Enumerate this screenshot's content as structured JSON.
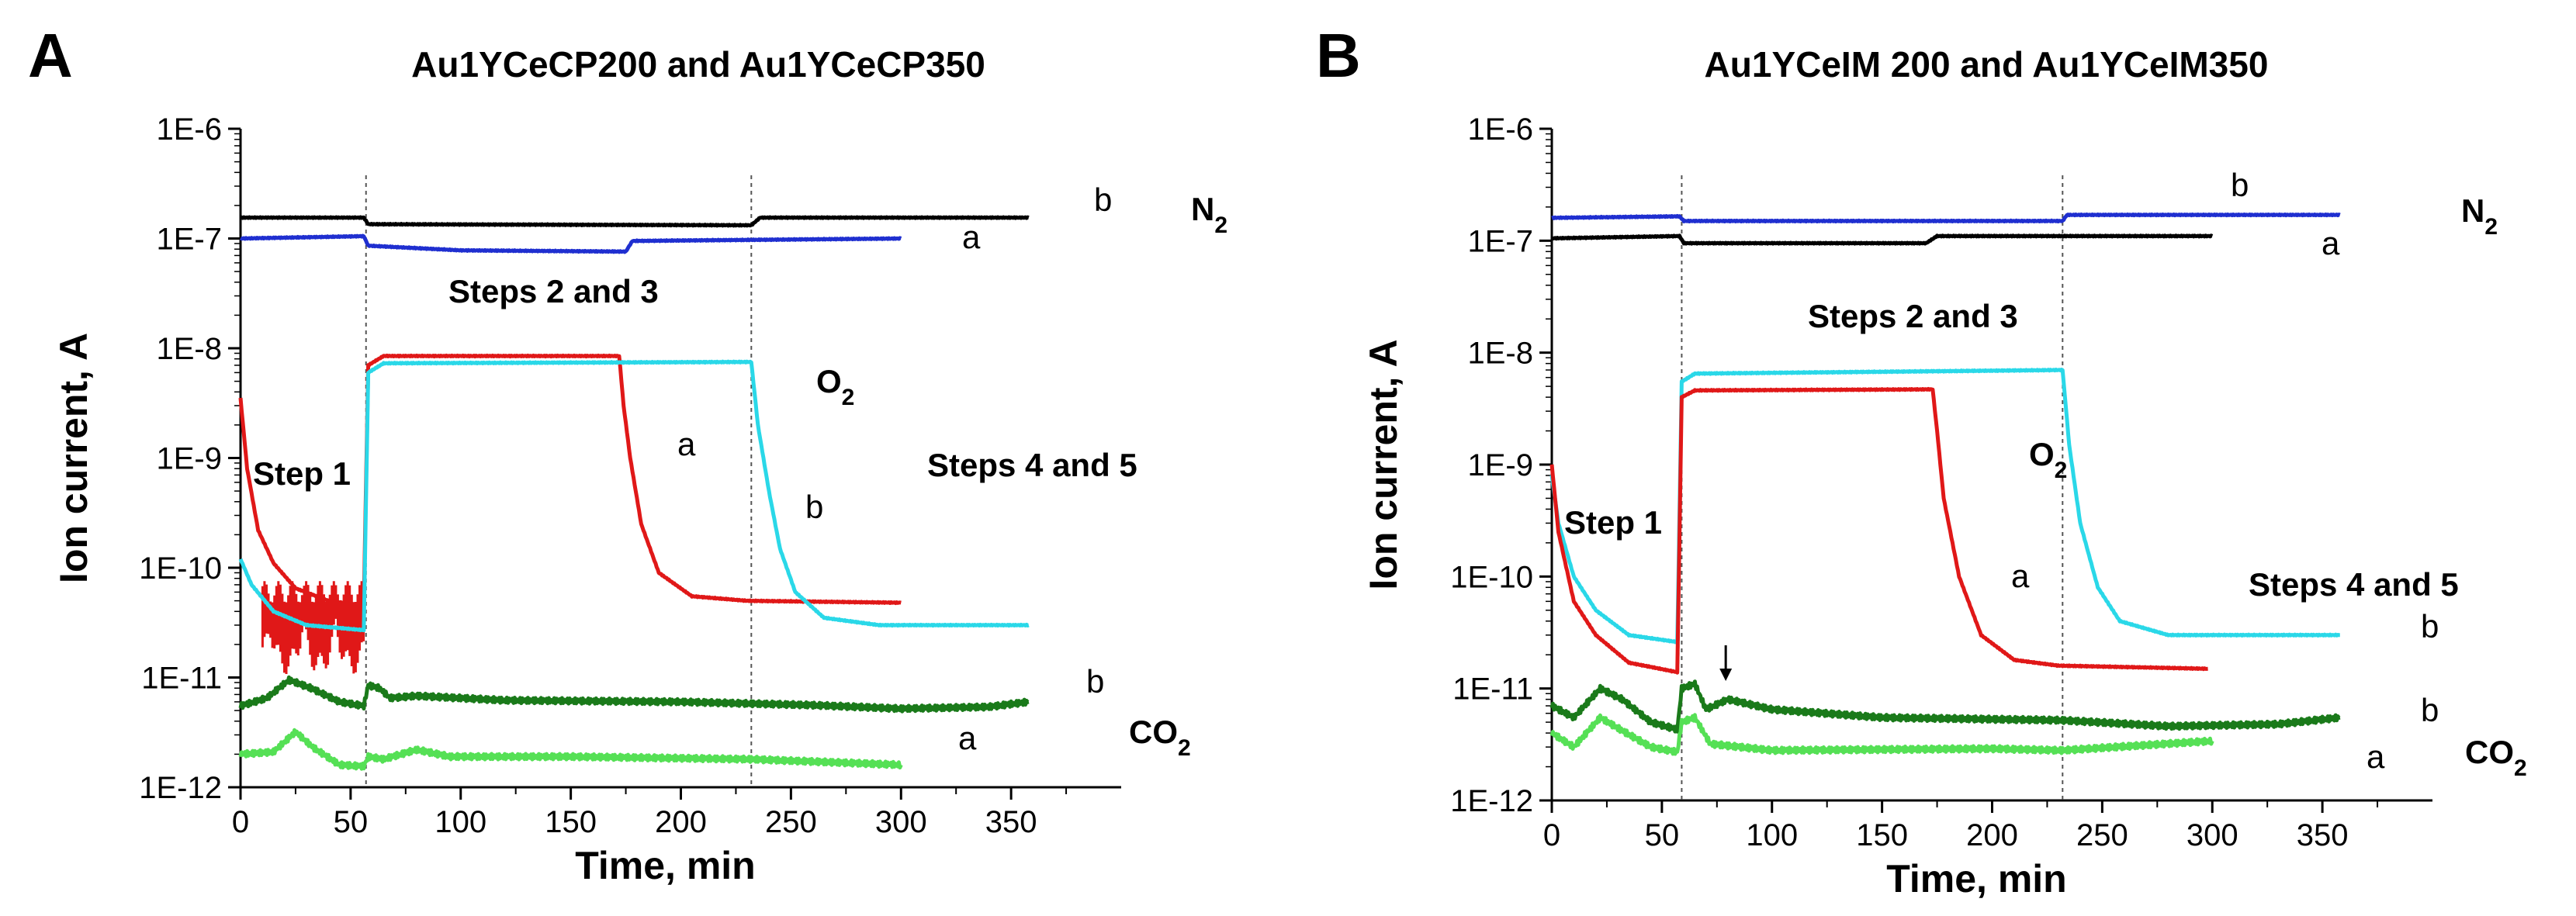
{
  "chart_data": [
    {
      "panel": "A",
      "type": "line",
      "title": "Au1YCeCP200 and Au1YCeCP350",
      "xlabel": "Time, min",
      "ylabel": "Ion current, A",
      "xlim": [
        0,
        400
      ],
      "ylim": [
        1e-12,
        1e-06
      ],
      "yscale": "log",
      "xticks": [
        0,
        50,
        100,
        150,
        200,
        250,
        300,
        350
      ],
      "yticks": [
        1e-12,
        1e-11,
        1e-10,
        1e-09,
        1e-08,
        1e-07,
        1e-06
      ],
      "ytick_labels": [
        "1E-12",
        "1E-11",
        "1E-10",
        "1E-9",
        "1E-8",
        "1E-7",
        "1E-6"
      ],
      "dashed_lines_x": [
        57,
        232
      ],
      "series": [
        {
          "gas": "N2",
          "label": "b",
          "color": "#000000",
          "points": [
            [
              0,
              1.55e-07
            ],
            [
              56,
              1.55e-07
            ],
            [
              58,
              1.35e-07
            ],
            [
              232,
              1.32e-07
            ],
            [
              236,
              1.55e-07
            ],
            [
              358,
              1.55e-07
            ]
          ]
        },
        {
          "gas": "N2",
          "label": "a",
          "color": "#1f2fd0",
          "points": [
            [
              0,
              1e-07
            ],
            [
              56,
              1.05e-07
            ],
            [
              58,
              8.6e-08
            ],
            [
              100,
              7.8e-08
            ],
            [
              175,
              7.6e-08
            ],
            [
              178,
              9.5e-08
            ],
            [
              300,
              1e-07
            ]
          ]
        },
        {
          "gas": "O2",
          "label": "a",
          "color": "#e01818",
          "noisy_range": [
            10,
            56
          ],
          "points": [
            [
              0,
              3.5e-09
            ],
            [
              3,
              8e-10
            ],
            [
              8,
              2.2e-10
            ],
            [
              15,
              1.1e-10
            ],
            [
              25,
              6.5e-11
            ],
            [
              40,
              5e-11
            ],
            [
              56,
              4.5e-11
            ],
            [
              58,
              7e-09
            ],
            [
              65,
              8.5e-09
            ],
            [
              172,
              8.5e-09
            ],
            [
              174,
              3e-09
            ],
            [
              177,
              1e-09
            ],
            [
              182,
              2.5e-10
            ],
            [
              190,
              9e-11
            ],
            [
              205,
              5.5e-11
            ],
            [
              230,
              5e-11
            ],
            [
              300,
              4.8e-11
            ]
          ]
        },
        {
          "gas": "O2",
          "label": "b",
          "color": "#2ad8e8",
          "points": [
            [
              0,
              1.2e-10
            ],
            [
              5,
              7e-11
            ],
            [
              15,
              4e-11
            ],
            [
              30,
              3e-11
            ],
            [
              56,
              2.7e-11
            ],
            [
              58,
              6e-09
            ],
            [
              65,
              7.3e-09
            ],
            [
              232,
              7.5e-09
            ],
            [
              235,
              2e-09
            ],
            [
              240,
              5e-10
            ],
            [
              245,
              1.5e-10
            ],
            [
              252,
              6e-11
            ],
            [
              265,
              3.5e-11
            ],
            [
              290,
              3e-11
            ],
            [
              358,
              3e-11
            ]
          ]
        },
        {
          "gas": "CO2",
          "label": "b",
          "color": "#1a7a1a",
          "points": [
            [
              0,
              5.5e-12
            ],
            [
              12,
              6.5e-12
            ],
            [
              22,
              9.5e-12
            ],
            [
              32,
              8e-12
            ],
            [
              45,
              6e-12
            ],
            [
              56,
              5.5e-12
            ],
            [
              58,
              8.5e-12
            ],
            [
              63,
              8e-12
            ],
            [
              68,
              6.5e-12
            ],
            [
              80,
              6.8e-12
            ],
            [
              120,
              6.2e-12
            ],
            [
              200,
              6e-12
            ],
            [
              260,
              5.6e-12
            ],
            [
              300,
              5.2e-12
            ],
            [
              340,
              5.4e-12
            ],
            [
              358,
              6e-12
            ]
          ]
        },
        {
          "gas": "CO2",
          "label": "a",
          "color": "#55e055",
          "points": [
            [
              0,
              2e-12
            ],
            [
              15,
              2.1e-12
            ],
            [
              25,
              3.2e-12
            ],
            [
              33,
              2.3e-12
            ],
            [
              45,
              1.6e-12
            ],
            [
              56,
              1.55e-12
            ],
            [
              58,
              1.9e-12
            ],
            [
              65,
              1.8e-12
            ],
            [
              80,
              2.2e-12
            ],
            [
              95,
              1.9e-12
            ],
            [
              150,
              1.9e-12
            ],
            [
              232,
              1.8e-12
            ],
            [
              300,
              1.6e-12
            ]
          ]
        }
      ],
      "annotations": {
        "step1": "Step 1",
        "steps23": "Steps 2 and 3",
        "steps45": "Steps 4 and 5",
        "n2_main": "N",
        "n2_sub": "2",
        "o2_main": "O",
        "o2_sub": "2",
        "co2_main": "CO",
        "co2_sub": "2",
        "n2_b": "b",
        "n2_a": "a",
        "o2_a": "a",
        "o2_b": "b",
        "co2_b": "b",
        "co2_a": "a"
      }
    },
    {
      "panel": "B",
      "type": "line",
      "title": "Au1YCeIM 200 and Au1YCeIM350",
      "xlabel": "Time, min",
      "ylabel": "Ion current, A",
      "xlim": [
        0,
        400
      ],
      "ylim": [
        1e-12,
        1e-06
      ],
      "yscale": "log",
      "xticks": [
        0,
        50,
        100,
        150,
        200,
        250,
        300,
        350
      ],
      "yticks": [
        1e-12,
        1e-11,
        1e-10,
        1e-09,
        1e-08,
        1e-07,
        1e-06
      ],
      "ytick_labels": [
        "1E-12",
        "1E-11",
        "1E-10",
        "1E-9",
        "1E-8",
        "1E-7",
        "1E-6"
      ],
      "dashed_lines_x": [
        59,
        232
      ],
      "series": [
        {
          "gas": "N2",
          "label": "b",
          "color": "#1f2fd0",
          "points": [
            [
              0,
              1.6e-07
            ],
            [
              58,
              1.65e-07
            ],
            [
              60,
              1.5e-07
            ],
            [
              232,
              1.5e-07
            ],
            [
              234,
              1.7e-07
            ],
            [
              358,
              1.7e-07
            ]
          ]
        },
        {
          "gas": "N2",
          "label": "a",
          "color": "#000000",
          "points": [
            [
              0,
              1.05e-07
            ],
            [
              58,
              1.1e-07
            ],
            [
              60,
              9.5e-08
            ],
            [
              170,
              9.5e-08
            ],
            [
              175,
              1.1e-07
            ],
            [
              300,
              1.1e-07
            ]
          ]
        },
        {
          "gas": "O2",
          "label": "b",
          "color": "#2ad8e8",
          "points": [
            [
              0,
              8e-10
            ],
            [
              3,
              3e-10
            ],
            [
              10,
              1e-10
            ],
            [
              20,
              5e-11
            ],
            [
              35,
              3e-11
            ],
            [
              57,
              2.6e-11
            ],
            [
              59,
              5.5e-09
            ],
            [
              65,
              6.5e-09
            ],
            [
              232,
              7e-09
            ],
            [
              235,
              1.5e-09
            ],
            [
              240,
              3e-10
            ],
            [
              248,
              8e-11
            ],
            [
              258,
              4e-11
            ],
            [
              280,
              3e-11
            ],
            [
              358,
              3e-11
            ]
          ]
        },
        {
          "gas": "O2",
          "label": "a",
          "color": "#e01818",
          "points": [
            [
              0,
              1e-09
            ],
            [
              3,
              2.5e-10
            ],
            [
              10,
              6e-11
            ],
            [
              20,
              3e-11
            ],
            [
              35,
              1.7e-11
            ],
            [
              57,
              1.4e-11
            ],
            [
              59,
              4e-09
            ],
            [
              65,
              4.6e-09
            ],
            [
              173,
              4.7e-09
            ],
            [
              175,
              2e-09
            ],
            [
              178,
              5e-10
            ],
            [
              185,
              1e-10
            ],
            [
              195,
              3e-11
            ],
            [
              210,
              1.8e-11
            ],
            [
              230,
              1.6e-11
            ],
            [
              298,
              1.5e-11
            ]
          ]
        },
        {
          "gas": "CO2",
          "label": "b",
          "color": "#1a7a1a",
          "points": [
            [
              0,
              7e-12
            ],
            [
              10,
              5.5e-12
            ],
            [
              22,
              1e-11
            ],
            [
              32,
              8e-12
            ],
            [
              45,
              5e-12
            ],
            [
              57,
              4.3e-12
            ],
            [
              59,
              1e-11
            ],
            [
              65,
              1.1e-11
            ],
            [
              70,
              6.5e-12
            ],
            [
              80,
              8e-12
            ],
            [
              100,
              6.5e-12
            ],
            [
              150,
              5.5e-12
            ],
            [
              232,
              5.2e-12
            ],
            [
              280,
              4.6e-12
            ],
            [
              330,
              4.8e-12
            ],
            [
              358,
              5.5e-12
            ]
          ]
        },
        {
          "gas": "CO2",
          "label": "a",
          "color": "#55e055",
          "points": [
            [
              0,
              4e-12
            ],
            [
              10,
              3e-12
            ],
            [
              22,
              5.5e-12
            ],
            [
              32,
              4.2e-12
            ],
            [
              45,
              3e-12
            ],
            [
              57,
              2.7e-12
            ],
            [
              59,
              5e-12
            ],
            [
              65,
              5.5e-12
            ],
            [
              72,
              3.2e-12
            ],
            [
              100,
              2.8e-12
            ],
            [
              200,
              2.9e-12
            ],
            [
              232,
              2.8e-12
            ],
            [
              300,
              3.4e-12
            ]
          ]
        }
      ],
      "annotations": {
        "step1": "Step 1",
        "steps23": "Steps 2 and 3",
        "steps45": "Steps 4 and 5",
        "n2_main": "N",
        "n2_sub": "2",
        "o2_main": "O",
        "o2_sub": "2",
        "co2_main": "CO",
        "co2_sub": "2",
        "n2_b": "b",
        "n2_a": "a",
        "o2_a": "a",
        "o2_b": "b",
        "co2_b": "b",
        "co2_a": "a",
        "arrow_x": 79
      }
    }
  ]
}
